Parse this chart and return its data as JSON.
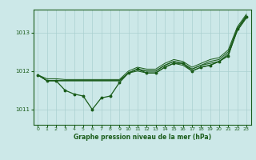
{
  "title": "Graphe pression niveau de la mer (hPa)",
  "bg_color": "#cce8e8",
  "grid_color": "#aad0d0",
  "line_color": "#1a5c1a",
  "xlim": [
    -0.5,
    23.5
  ],
  "ylim": [
    1010.6,
    1013.6
  ],
  "yticks": [
    1011,
    1012,
    1013
  ],
  "xticks": [
    0,
    1,
    2,
    3,
    4,
    5,
    6,
    7,
    8,
    9,
    10,
    11,
    12,
    13,
    14,
    15,
    16,
    17,
    18,
    19,
    20,
    21,
    22,
    23
  ],
  "line1": [
    1011.9,
    1011.75,
    1011.75,
    1011.75,
    1011.75,
    1011.75,
    1011.75,
    1011.75,
    1011.75,
    1011.75,
    1011.95,
    1012.05,
    1012.0,
    1012.0,
    1012.15,
    1012.25,
    1012.2,
    1012.05,
    1012.15,
    1012.25,
    1012.3,
    1012.5,
    1013.1,
    1013.45
  ],
  "line2": [
    1011.9,
    1011.75,
    1011.75,
    1011.75,
    1011.75,
    1011.75,
    1011.75,
    1011.75,
    1011.75,
    1011.75,
    1011.95,
    1012.05,
    1012.0,
    1012.0,
    1012.15,
    1012.25,
    1012.2,
    1012.05,
    1012.15,
    1012.2,
    1012.25,
    1012.45,
    1013.05,
    1013.4
  ],
  "line3": [
    1011.9,
    1011.75,
    1011.75,
    1011.75,
    1011.75,
    1011.75,
    1011.75,
    1011.75,
    1011.75,
    1011.75,
    1011.95,
    1012.0,
    1011.95,
    1011.95,
    1012.1,
    1012.2,
    1012.15,
    1012.0,
    1012.1,
    1012.15,
    1012.25,
    1012.4,
    1013.05,
    1013.38
  ],
  "line_top": [
    1011.9,
    1011.8,
    1011.8,
    1011.78,
    1011.78,
    1011.78,
    1011.78,
    1011.78,
    1011.78,
    1011.78,
    1012.0,
    1012.1,
    1012.05,
    1012.05,
    1012.2,
    1012.3,
    1012.25,
    1012.1,
    1012.2,
    1012.3,
    1012.35,
    1012.55,
    1013.15,
    1013.48
  ],
  "main_y": [
    1011.9,
    1011.75,
    1011.75,
    1011.5,
    1011.4,
    1011.35,
    1011.0,
    1011.3,
    1011.35,
    1011.7,
    1011.95,
    1012.05,
    1011.95,
    1011.95,
    1012.1,
    1012.2,
    1012.2,
    1012.0,
    1012.1,
    1012.15,
    1012.25,
    1012.4,
    1013.1,
    1013.42
  ]
}
